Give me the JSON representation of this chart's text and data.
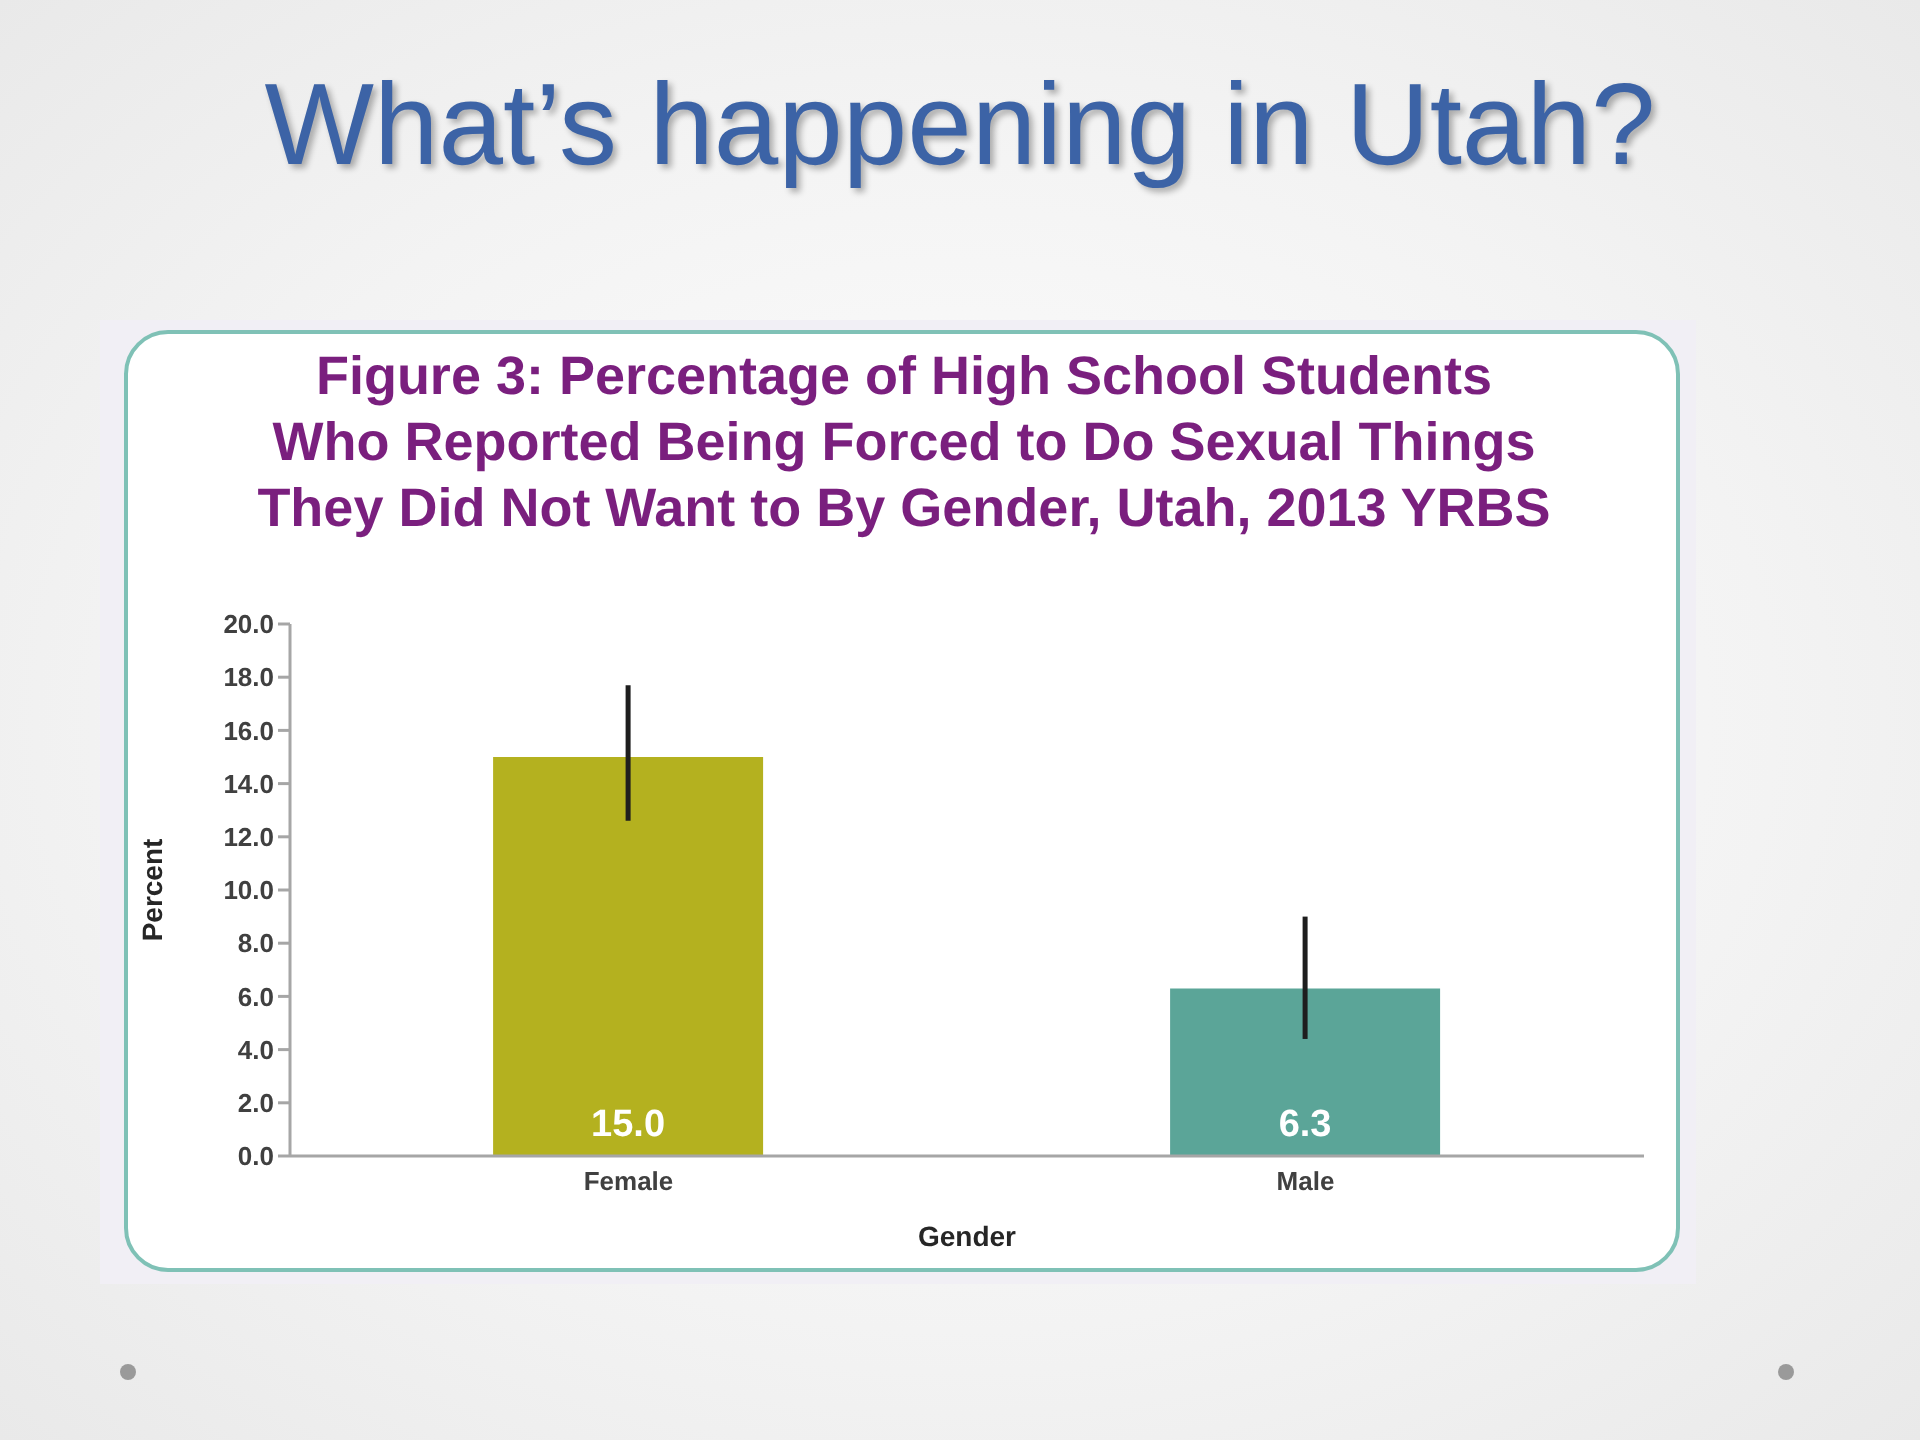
{
  "chart_data": {
    "type": "bar",
    "title": "What’s happening in Utah?",
    "subtitle": "Figure 3: Percentage of High School Students Who Reported Being Forced to Do Sexual Things They Did Not Want to By Gender, Utah, 2013 YRBS",
    "xlabel": "Gender",
    "ylabel": "Percent",
    "categories": [
      "Female",
      "Male"
    ],
    "values": [
      15.0,
      6.3
    ],
    "colors": [
      "#b4b11f",
      "#5ba598"
    ],
    "errors": [
      [
        12.6,
        17.7
      ],
      [
        4.4,
        9.0
      ]
    ],
    "value_labels": [
      "15.0",
      "6.3"
    ],
    "ylim": [
      0,
      20
    ],
    "yticks": [
      {
        "value": 0,
        "label": "0.0"
      },
      {
        "value": 2,
        "label": "2.0"
      },
      {
        "value": 4,
        "label": "4.0"
      },
      {
        "value": 6,
        "label": "6.0"
      },
      {
        "value": 8,
        "label": "8.0"
      },
      {
        "value": 10,
        "label": "10.0"
      },
      {
        "value": 12,
        "label": "12.0"
      },
      {
        "value": 14,
        "label": "14.0"
      },
      {
        "value": 16,
        "label": "16.0"
      },
      {
        "value": 18,
        "label": "18.0"
      },
      {
        "value": 20,
        "label": "20.0"
      }
    ]
  }
}
